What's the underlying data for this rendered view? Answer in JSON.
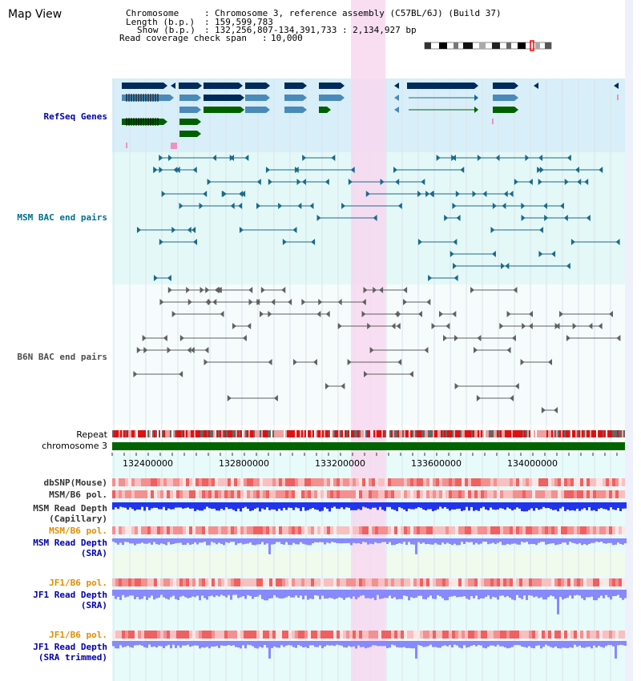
{
  "view_title": "Map View",
  "info": {
    "chromosome_key": "Chromosome",
    "chromosome_value": "Chromosome 3, reference assembly (C57BL/6J) (Build 37)",
    "length_key": "Length (b.p.)",
    "length_value": "159,599,783",
    "show_key": "Show (b.p.)",
    "show_value": "132,256,807-134,391,733 : 2,134,927 bp",
    "coverage_key": "Read coverage check span",
    "coverage_value": "10,000"
  },
  "tracks": {
    "refseq": "RefSeq Genes",
    "msm_bac": "MSM BAC end pairs",
    "b6n_bac": "B6N BAC end pairs",
    "repeat": "Repeat",
    "chromosome": "chromosome 3",
    "dbsnp": "dbSNP(Mouse)",
    "msm_b6_pol_1": "MSM/B6 pol.",
    "msm_depth_cap_1": "MSM Read Depth",
    "msm_depth_cap_2": "(Capillary)",
    "msm_b6_pol_2": "MSM/B6 pol.",
    "msm_depth_sra_1": "MSM Read Depth",
    "msm_depth_sra_2": "(SRA)",
    "jf1_pol_1": "JF1/B6 pol.",
    "jf1_depth_sra_1": "JF1 Read Depth",
    "jf1_depth_sra_2": "(SRA)",
    "jf1_pol_2": "JF1/B6 pol.",
    "jf1_trim_1": "JF1 Read Depth",
    "jf1_trim_2": "(SRA trimmed)"
  },
  "axis_ticks": [
    "132400000",
    "132800000",
    "133200000",
    "133600000",
    "134000000"
  ],
  "colors": {
    "refseq_bg": "#d8eef8",
    "msm_bg": "#e4f8f8",
    "highlight": "#f8d8f0",
    "navy": "#002a5a",
    "steel": "#4a8ab8",
    "green": "#006000",
    "teal": "#1a6a8a",
    "gray": "#606060",
    "chromosome_bar": "#006400",
    "depth_blue": "#2a2aff",
    "depth_light": "#8888ff"
  }
}
